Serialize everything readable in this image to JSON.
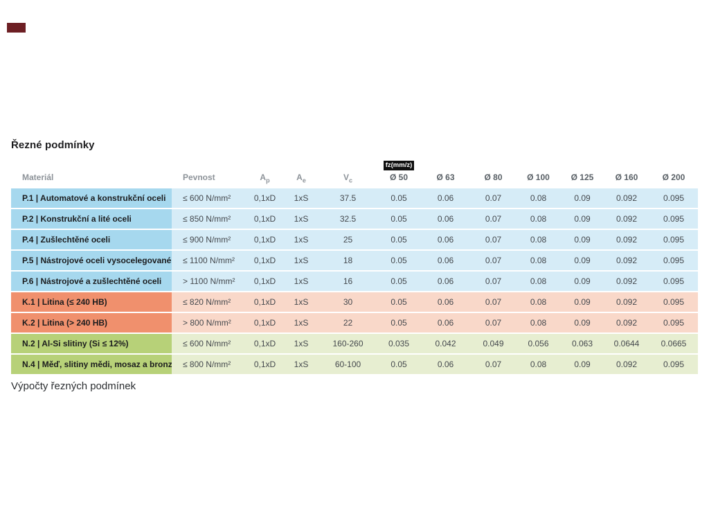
{
  "page": {
    "title": "Řezné podmínky",
    "footer": "Výpočty řezných podmínek"
  },
  "colors": {
    "blue_label": "#a6d8ee",
    "blue_cell": "#d6ecf7",
    "orange_label": "#f0906d",
    "orange_cell": "#f9d8c9",
    "green_label": "#b7d178",
    "green_cell": "#e7eed1",
    "badge_bg": "#101010",
    "badge_text": "#ffffff",
    "top_mark": "#6d1f24"
  },
  "table": {
    "fz_badge": "fz(mm/z)",
    "headers": [
      {
        "text": "Materiál",
        "align": "left"
      },
      {
        "text": "Pevnost",
        "align": "left"
      },
      {
        "text": "A",
        "sub": "p",
        "align": "center"
      },
      {
        "text": "A",
        "sub": "e",
        "align": "center"
      },
      {
        "text": "V",
        "sub": "c",
        "align": "center"
      },
      {
        "text": "Ø 50",
        "dark": true,
        "badge": true,
        "align": "center"
      },
      {
        "text": "Ø 63",
        "dark": true,
        "align": "center"
      },
      {
        "text": "Ø 80",
        "dark": true,
        "align": "center"
      },
      {
        "text": "Ø 100",
        "dark": true,
        "align": "center"
      },
      {
        "text": "Ø 125",
        "dark": true,
        "align": "center"
      },
      {
        "text": "Ø 160",
        "dark": true,
        "align": "center"
      },
      {
        "text": "Ø 200",
        "dark": true,
        "align": "center"
      }
    ],
    "rows": [
      {
        "group": "blue",
        "label": "P.1 | Automatové a konstrukční oceli",
        "pevnost": "≤ 600 N/mm²",
        "ap": "0,1xD",
        "ae": "1xS",
        "vc": "37.5",
        "fz": [
          "0.05",
          "0.06",
          "0.07",
          "0.08",
          "0.09",
          "0.092",
          "0.095"
        ]
      },
      {
        "group": "blue",
        "label": "P.2 | Konstrukční a lité oceli",
        "pevnost": "≤ 850 N/mm²",
        "ap": "0,1xD",
        "ae": "1xS",
        "vc": "32.5",
        "fz": [
          "0.05",
          "0.06",
          "0.07",
          "0.08",
          "0.09",
          "0.092",
          "0.095"
        ]
      },
      {
        "group": "blue",
        "label": "P.4 | Zušlechtěné oceli",
        "pevnost": "≤ 900 N/mm²",
        "ap": "0,1xD",
        "ae": "1xS",
        "vc": "25",
        "fz": [
          "0.05",
          "0.06",
          "0.07",
          "0.08",
          "0.09",
          "0.092",
          "0.095"
        ]
      },
      {
        "group": "blue",
        "label": "P.5 | Nástrojové oceli vysocelegované",
        "pevnost": "≤ 1100 N/mm²",
        "ap": "0,1xD",
        "ae": "1xS",
        "vc": "18",
        "fz": [
          "0.05",
          "0.06",
          "0.07",
          "0.08",
          "0.09",
          "0.092",
          "0.095"
        ]
      },
      {
        "group": "blue",
        "label": "P.6 | Nástrojové a zušlechtěné oceli",
        "pevnost": "> 1100 N/mm²",
        "ap": "0,1xD",
        "ae": "1xS",
        "vc": "16",
        "fz": [
          "0.05",
          "0.06",
          "0.07",
          "0.08",
          "0.09",
          "0.092",
          "0.095"
        ]
      },
      {
        "group": "orange",
        "label": "K.1 | Litina (≤ 240 HB)",
        "pevnost": "≤ 820 N/mm²",
        "ap": "0,1xD",
        "ae": "1xS",
        "vc": "30",
        "fz": [
          "0.05",
          "0.06",
          "0.07",
          "0.08",
          "0.09",
          "0.092",
          "0.095"
        ]
      },
      {
        "group": "orange",
        "label": "K.2 | Litina (> 240 HB)",
        "pevnost": "> 800 N/mm²",
        "ap": "0,1xD",
        "ae": "1xS",
        "vc": "22",
        "fz": [
          "0.05",
          "0.06",
          "0.07",
          "0.08",
          "0.09",
          "0.092",
          "0.095"
        ]
      },
      {
        "group": "green",
        "label": "N.2 | Al-Si slitiny (Si ≤ 12%)",
        "pevnost": "≤ 600 N/mm²",
        "ap": "0,1xD",
        "ae": "1xS",
        "vc": "160-260",
        "fz": [
          "0.035",
          "0.042",
          "0.049",
          "0.056",
          "0.063",
          "0.0644",
          "0.0665"
        ]
      },
      {
        "group": "green",
        "label": "N.4 | Měď, slitiny mědi, mosaz a bronz",
        "pevnost": "≤ 800 N/mm²",
        "ap": "0,1xD",
        "ae": "1xS",
        "vc": "60-100",
        "fz": [
          "0.05",
          "0.06",
          "0.07",
          "0.08",
          "0.09",
          "0.092",
          "0.095"
        ]
      }
    ]
  }
}
